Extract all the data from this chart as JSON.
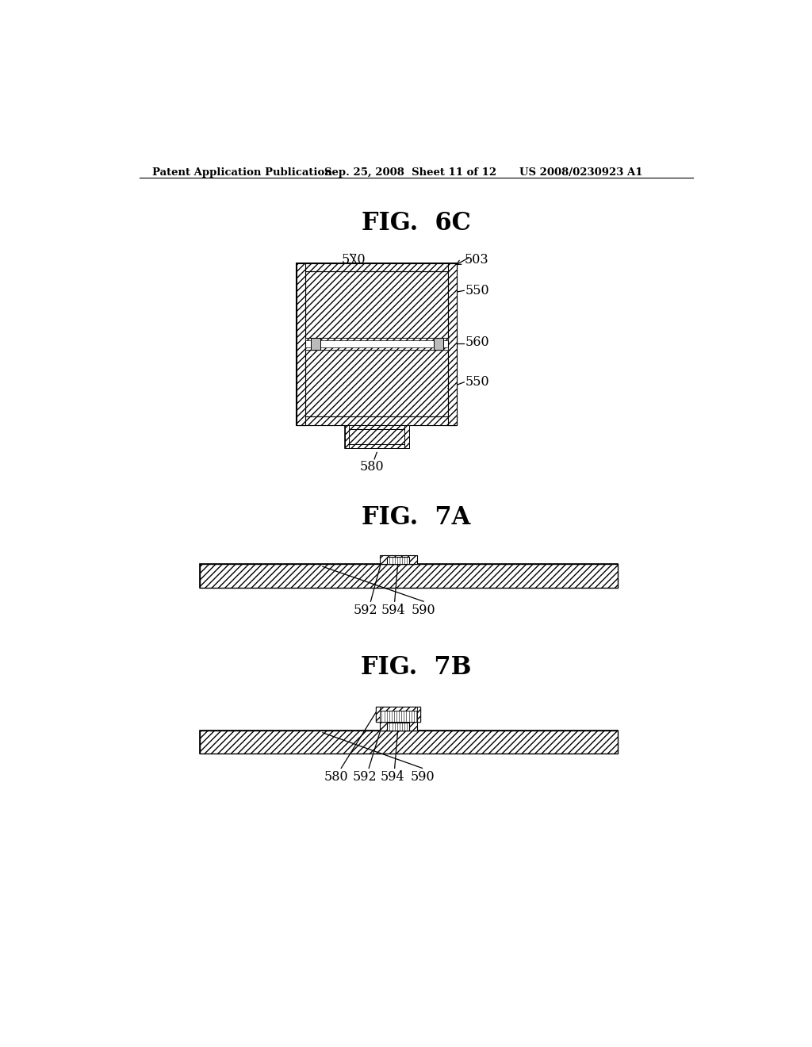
{
  "bg_color": "#ffffff",
  "header_left": "Patent Application Publication",
  "header_mid": "Sep. 25, 2008  Sheet 11 of 12",
  "header_right": "US 2008/0230923 A1",
  "fig6c_title": "FIG.  6C",
  "fig7a_title": "FIG.  7A",
  "fig7b_title": "FIG.  7B",
  "line_color": "#000000"
}
